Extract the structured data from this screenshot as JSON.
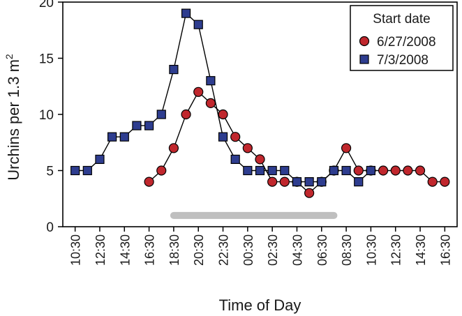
{
  "chart_data": {
    "type": "line",
    "title": "",
    "xlabel": "Time of Day",
    "ylabel": "Urchins per 1.3 m",
    "ylabel_superscript": "2",
    "ylim": [
      0,
      20
    ],
    "yticks": [
      0,
      5,
      10,
      15,
      20
    ],
    "x_tick_labels": [
      "10:30",
      "12:30",
      "14:30",
      "16:30",
      "18:30",
      "20:30",
      "22:30",
      "00:30",
      "02:30",
      "04:30",
      "06:30",
      "08:30",
      "10:30",
      "12:30",
      "14:30",
      "16:30"
    ],
    "x_unit": "hours elapsed from first 10:30 tick",
    "xlim": [
      -1,
      31
    ],
    "grid": false,
    "legend": {
      "title": "Start date",
      "position": "top-right"
    },
    "night_bar": {
      "x_start": 8,
      "x_end": 21,
      "y": 1,
      "color": "#bfbfbf"
    },
    "series": [
      {
        "name": "6/27/2008",
        "marker": "circle",
        "color": "#c0272d",
        "points": [
          [
            6,
            4
          ],
          [
            7,
            5
          ],
          [
            8,
            7
          ],
          [
            9,
            10
          ],
          [
            10,
            12
          ],
          [
            11,
            11
          ],
          [
            12,
            10
          ],
          [
            13,
            8
          ],
          [
            14,
            7
          ],
          [
            15,
            6
          ],
          [
            16,
            4
          ],
          [
            17,
            4
          ],
          [
            18,
            4
          ],
          [
            19,
            3
          ],
          [
            20,
            4
          ],
          [
            21,
            5
          ],
          [
            22,
            7
          ],
          [
            23,
            5
          ],
          [
            24,
            5
          ],
          [
            25,
            5
          ],
          [
            26,
            5
          ],
          [
            27,
            5
          ],
          [
            28,
            5
          ],
          [
            29,
            4
          ],
          [
            30,
            4
          ]
        ]
      },
      {
        "name": "7/3/2008",
        "marker": "square",
        "color": "#2e3d8f",
        "points": [
          [
            0,
            5
          ],
          [
            1,
            5
          ],
          [
            2,
            6
          ],
          [
            3,
            8
          ],
          [
            4,
            8
          ],
          [
            5,
            9
          ],
          [
            6,
            9
          ],
          [
            7,
            10
          ],
          [
            8,
            14
          ],
          [
            9,
            19
          ],
          [
            10,
            18
          ],
          [
            11,
            13
          ],
          [
            12,
            8
          ],
          [
            13,
            6
          ],
          [
            14,
            5
          ],
          [
            15,
            5
          ],
          [
            16,
            5
          ],
          [
            17,
            5
          ],
          [
            18,
            4
          ],
          [
            19,
            4
          ],
          [
            20,
            4
          ],
          [
            21,
            5
          ],
          [
            22,
            5
          ],
          [
            23,
            4
          ],
          [
            24,
            5
          ]
        ]
      }
    ]
  }
}
